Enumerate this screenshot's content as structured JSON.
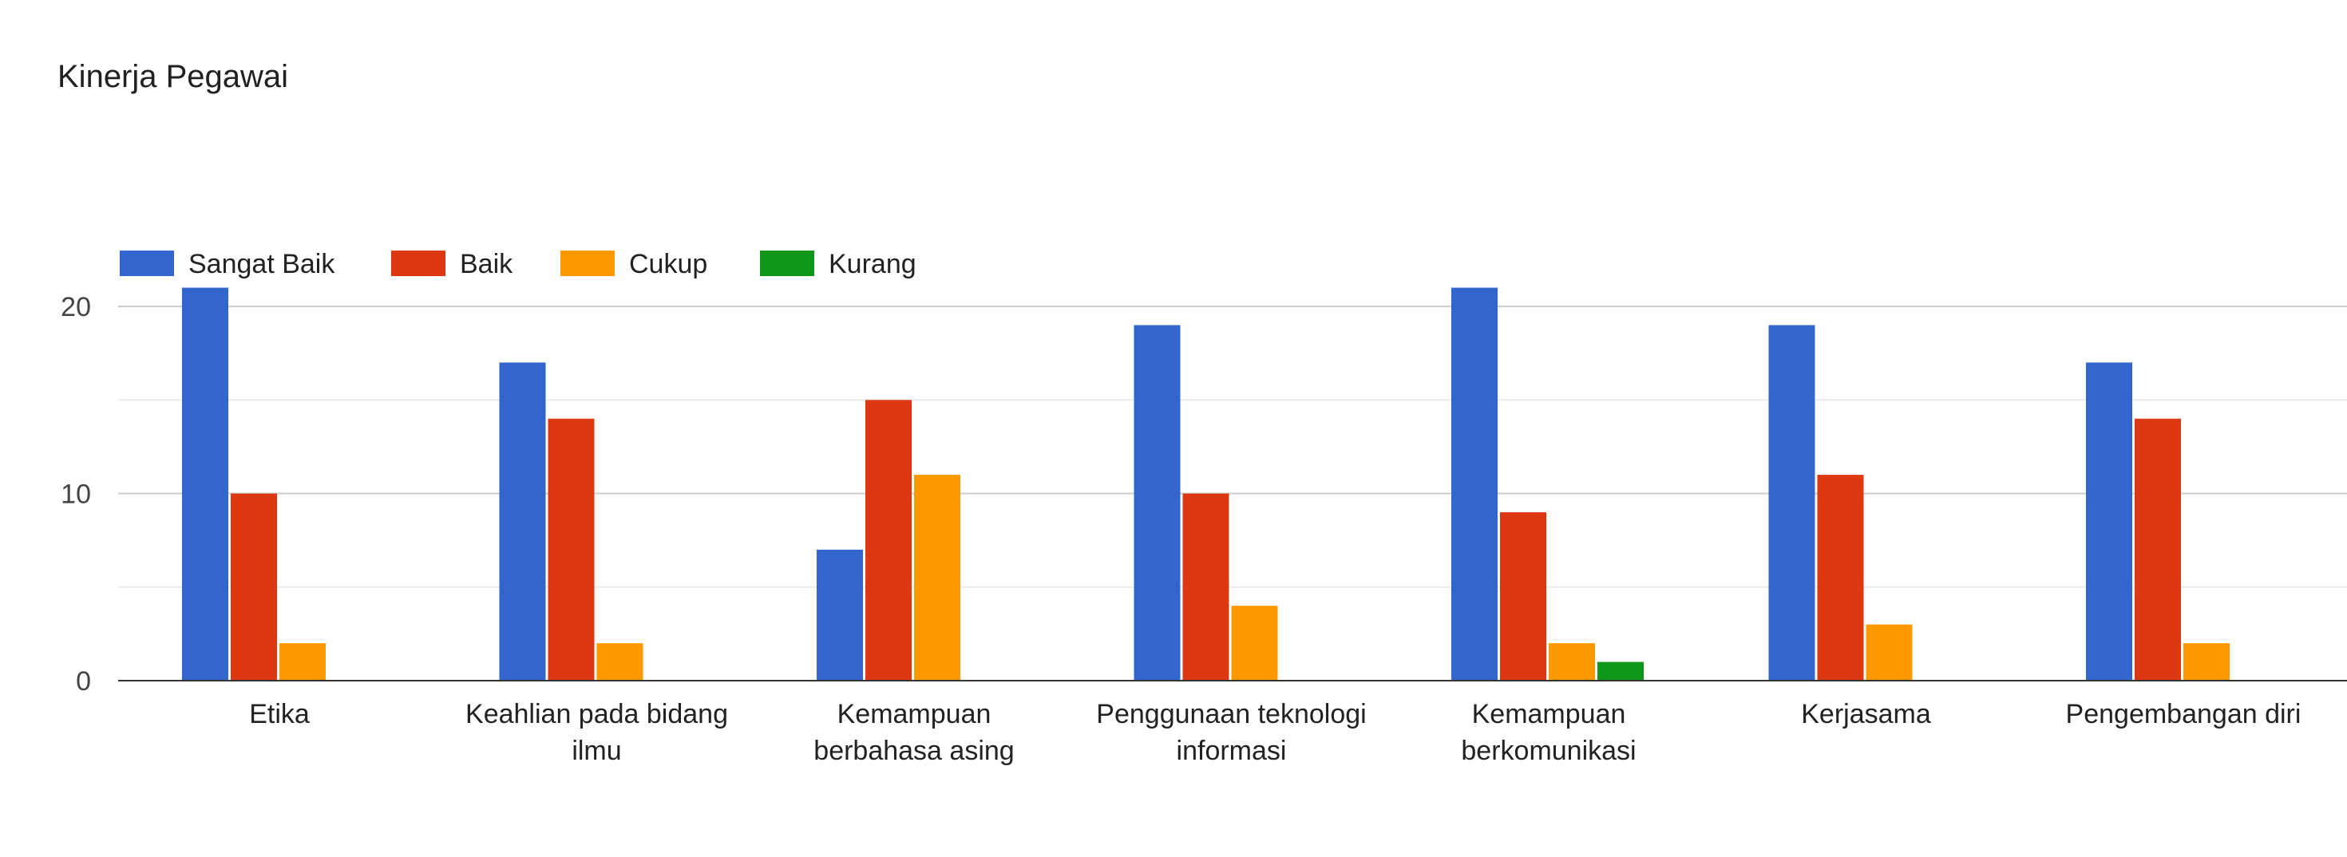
{
  "chart_data": {
    "type": "bar",
    "title": "Kinerja Pegawai",
    "xlabel": "",
    "ylabel": "",
    "ylim": [
      0,
      22
    ],
    "yticks": [
      0,
      10,
      20
    ],
    "grid": true,
    "legend_position": "top-left",
    "categories": [
      [
        "Etika"
      ],
      [
        "Keahlian pada bidang",
        "ilmu"
      ],
      [
        "Kemampuan",
        "berbahasa asing"
      ],
      [
        "Penggunaan teknologi",
        "informasi"
      ],
      [
        "Kemampuan",
        "berkomunikasi"
      ],
      [
        "Kerjasama"
      ],
      [
        "Pengembangan diri"
      ]
    ],
    "series": [
      {
        "name": "Sangat Baik",
        "color": "#3366cc",
        "values": [
          21,
          17,
          7,
          19,
          21,
          19,
          17
        ]
      },
      {
        "name": "Baik",
        "color": "#dc3912",
        "values": [
          10,
          14,
          15,
          10,
          9,
          11,
          14
        ]
      },
      {
        "name": "Cukup",
        "color": "#ff9900",
        "values": [
          2,
          2,
          11,
          4,
          2,
          3,
          2
        ]
      },
      {
        "name": "Kurang",
        "color": "#109618",
        "values": [
          0,
          0,
          0,
          0,
          1,
          0,
          0
        ]
      }
    ]
  }
}
